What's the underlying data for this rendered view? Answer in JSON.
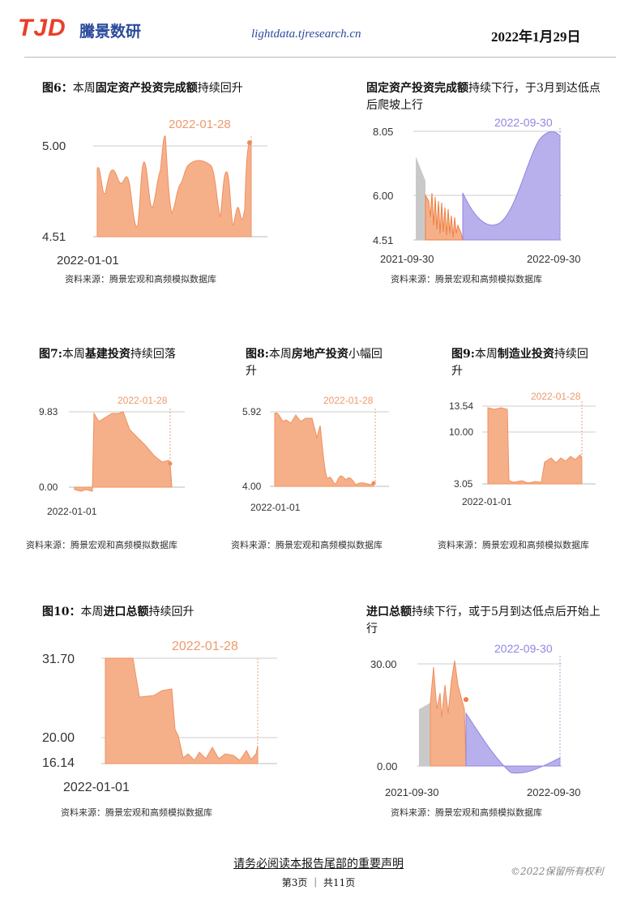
{
  "header": {
    "logo": "TJD",
    "logo_cn": "騰景数研",
    "site": "lightdata.tjresearch.cn",
    "date": "2022年1月29日"
  },
  "captions": {
    "c6": {
      "pre": "图6：",
      "mid1": "本周",
      "bold": "固定资产投资完成额",
      "post": "持续回升"
    },
    "c6b": {
      "bold": "固定资产投资完成额",
      "post": "持续下行，于3月到达低点后爬坡上行"
    },
    "c7": {
      "pre": "图7:",
      "mid1": "本周",
      "bold": "基建投资",
      "post": "持续回落"
    },
    "c8": {
      "pre": "图8:",
      "mid1": "本周",
      "bold": "房地产投资",
      "post": "小幅回升"
    },
    "c9": {
      "pre": "图9:",
      "mid1": "本周",
      "bold": "制造业投资",
      "post": "持续回升"
    },
    "c10": {
      "pre": "图10：",
      "mid1": "本周",
      "bold": "进口总额",
      "post": "持续回升"
    },
    "c10b": {
      "bold": "进口总额",
      "post": "持续下行，或于5月到达低点后开始上行"
    }
  },
  "source": "资料来源：腾景宏观和高频模拟数据库",
  "footer": {
    "notice": "请务必阅读本报告尾部的重要声明",
    "page": "第3页 ｜ 共11页",
    "copyright": "©2022保留所有权利"
  },
  "colors": {
    "orange": "#f5b08a",
    "orange_line": "#ef8f5e",
    "purple": "#b7b0ec",
    "gray": "#c9c9c9",
    "label": "#ee9a6c",
    "plabel": "#8f86e0"
  },
  "chart_data": [
    {
      "id": "fig6",
      "type": "area",
      "yticks": [
        "5.00",
        "4.51"
      ],
      "xlabel_start": "2022-01-01",
      "end_label": "2022-01-28"
    },
    {
      "id": "fig6b",
      "type": "area",
      "yticks": [
        "8.05",
        "6.00",
        "4.51"
      ],
      "x_start": "2021-09-30",
      "x_end": "2022-09-30",
      "end_label": "2022-09-30"
    },
    {
      "id": "fig7",
      "type": "area",
      "yticks": [
        "9.83",
        "0.00"
      ],
      "xlabel_start": "2022-01-01",
      "end_label": "2022-01-28"
    },
    {
      "id": "fig8",
      "type": "area",
      "yticks": [
        "5.92",
        "4.00"
      ],
      "xlabel_start": "2022-01-01",
      "end_label": "2022-01-28"
    },
    {
      "id": "fig9",
      "type": "area",
      "yticks": [
        "13.54",
        "10.00",
        "3.05"
      ],
      "xlabel_start": "2022-01-01",
      "end_label": "2022-01-28"
    },
    {
      "id": "fig10",
      "type": "area",
      "yticks": [
        "31.70",
        "20.00",
        "16.14"
      ],
      "xlabel_start": "2022-01-01",
      "end_label": "2022-01-28"
    },
    {
      "id": "fig10b",
      "type": "area",
      "yticks": [
        "30.00",
        "0.00"
      ],
      "x_start": "2021-09-30",
      "x_end": "2022-09-30",
      "end_label": "2022-09-30"
    }
  ]
}
